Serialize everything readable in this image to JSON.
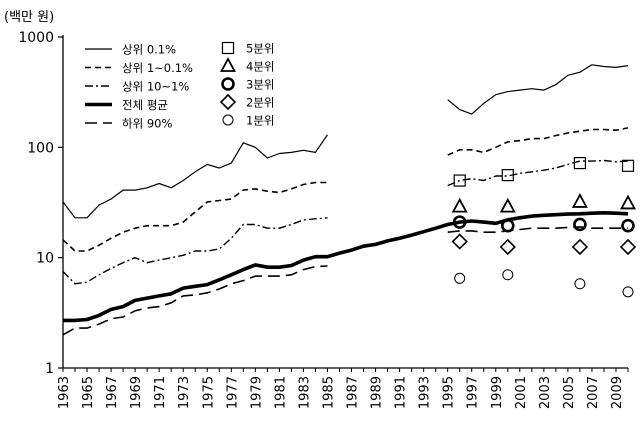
{
  "chart_data": {
    "type": "line",
    "ylabel": "(백만 원)",
    "y_scale": "log",
    "ylim": [
      1,
      1000
    ],
    "xlim": [
      1963,
      2010
    ],
    "y_ticks": [
      1,
      10,
      100,
      1000
    ],
    "y_tick_labels": [
      "1",
      "10",
      "100",
      "1000"
    ],
    "x_ticks": [
      1963,
      1965,
      1967,
      1969,
      1971,
      1973,
      1975,
      1977,
      1979,
      1981,
      1983,
      1985,
      1987,
      1989,
      1991,
      1993,
      1995,
      1997,
      1999,
      2001,
      2003,
      2005,
      2007,
      2009
    ],
    "x_tick_labels": [
      "1963",
      "1965",
      "1967",
      "1969",
      "1971",
      "1973",
      "1975",
      "1977",
      "1979",
      "1981",
      "1983",
      "1985",
      "1987",
      "1989",
      "1991",
      "1993",
      "1995",
      "1997",
      "1999",
      "2001",
      "2003",
      "2005",
      "2007",
      "2009"
    ],
    "grid": false,
    "legend_position": "top-left",
    "series": [
      {
        "name": "상위 0.1%",
        "style": "solid-thin",
        "x": [
          1963,
          1964,
          1965,
          1966,
          1967,
          1968,
          1969,
          1970,
          1971,
          1972,
          1973,
          1974,
          1975,
          1976,
          1977,
          1978,
          1979,
          1980,
          1981,
          1982,
          1983,
          1984,
          1985,
          null,
          1995,
          1996,
          1997,
          1998,
          1999,
          2000,
          2001,
          2002,
          2003,
          2004,
          2005,
          2006,
          2007,
          2008,
          2009,
          2010
        ],
        "y": [
          32,
          23,
          23,
          30,
          34,
          41,
          41,
          43,
          47,
          43,
          50,
          60,
          70,
          65,
          72,
          110,
          100,
          80,
          88,
          90,
          94,
          90,
          130,
          null,
          270,
          220,
          200,
          250,
          300,
          320,
          330,
          340,
          330,
          370,
          450,
          480,
          560,
          540,
          530,
          550
        ]
      },
      {
        "name": "상위 1~0.1%",
        "style": "dashed",
        "x": [
          1963,
          1964,
          1965,
          1966,
          1967,
          1968,
          1969,
          1970,
          1971,
          1972,
          1973,
          1974,
          1975,
          1976,
          1977,
          1978,
          1979,
          1980,
          1981,
          1982,
          1983,
          1984,
          1985,
          null,
          1995,
          1996,
          1997,
          1998,
          1999,
          2000,
          2001,
          2002,
          2003,
          2004,
          2005,
          2006,
          2007,
          2008,
          2009,
          2010
        ],
        "y": [
          14.5,
          11.5,
          11.5,
          13,
          15,
          17,
          18.5,
          19.5,
          19.5,
          19.5,
          21,
          26,
          32,
          33,
          34,
          41,
          42,
          40,
          39,
          42,
          46,
          48,
          48,
          null,
          85,
          95,
          95,
          90,
          100,
          112,
          115,
          120,
          120,
          128,
          135,
          140,
          145,
          145,
          143,
          150
        ]
      },
      {
        "name": "상위 10~1%",
        "style": "dash-dot",
        "x": [
          1963,
          1964,
          1965,
          1966,
          1967,
          1968,
          1969,
          1970,
          1971,
          1972,
          1973,
          1974,
          1975,
          1976,
          1977,
          1978,
          1979,
          1980,
          1981,
          1982,
          1983,
          1984,
          1985,
          null,
          1995,
          1996,
          1997,
          1998,
          1999,
          2000,
          2001,
          2002,
          2003,
          2004,
          2005,
          2006,
          2007,
          2008,
          2009,
          2010
        ],
        "y": [
          7.5,
          5.8,
          6,
          7,
          8,
          9,
          10,
          9,
          9.5,
          10,
          10.5,
          11.5,
          11.5,
          12,
          15,
          20,
          20,
          18.5,
          18.5,
          20,
          22,
          22.5,
          23,
          null,
          45,
          50,
          52,
          50,
          55,
          55,
          58,
          60,
          62,
          65,
          70,
          75,
          75,
          76,
          74,
          75
        ]
      },
      {
        "name": "전체 평균",
        "style": "solid-thick",
        "x": [
          1963,
          1964,
          1965,
          1966,
          1967,
          1968,
          1969,
          1970,
          1971,
          1972,
          1973,
          1974,
          1975,
          1976,
          1977,
          1978,
          1979,
          1980,
          1981,
          1982,
          1983,
          1984,
          1985,
          1986,
          1987,
          1988,
          1989,
          1990,
          1991,
          1992,
          1993,
          1994,
          1995,
          1996,
          1997,
          1998,
          1999,
          2000,
          2001,
          2002,
          2003,
          2004,
          2005,
          2006,
          2007,
          2008,
          2009,
          2010
        ],
        "y": [
          2.7,
          2.7,
          2.75,
          3,
          3.4,
          3.6,
          4.1,
          4.3,
          4.5,
          4.7,
          5.3,
          5.5,
          5.7,
          6.3,
          7,
          7.8,
          8.6,
          8.2,
          8.2,
          8.5,
          9.5,
          10.2,
          10.2,
          11,
          11.7,
          12.7,
          13.2,
          14.2,
          15,
          16,
          17.2,
          18.5,
          20,
          21,
          21.5,
          21,
          20.5,
          22,
          23,
          23.8,
          24.2,
          24.5,
          24.8,
          25,
          25.3,
          25.5,
          25.3,
          25
        ]
      },
      {
        "name": "하위 90%",
        "style": "long-dash",
        "x": [
          1963,
          1964,
          1965,
          1966,
          1967,
          1968,
          1969,
          1970,
          1971,
          1972,
          1973,
          1974,
          1975,
          1976,
          1977,
          1978,
          1979,
          1980,
          1981,
          1982,
          1983,
          1984,
          1985,
          null,
          1995,
          1996,
          1997,
          1998,
          1999,
          2000,
          2001,
          2002,
          2003,
          2004,
          2005,
          2006,
          2007,
          2008,
          2009,
          2010
        ],
        "y": [
          2,
          2.3,
          2.3,
          2.5,
          2.8,
          2.9,
          3.3,
          3.5,
          3.6,
          3.9,
          4.5,
          4.6,
          4.8,
          5.2,
          5.8,
          6.2,
          6.8,
          6.8,
          6.8,
          7,
          7.8,
          8.3,
          8.4,
          null,
          17,
          17.5,
          17.5,
          17,
          17,
          17.5,
          18,
          18.5,
          18.5,
          18.5,
          18.8,
          19,
          18.5,
          18.5,
          18.5,
          18.5
        ]
      },
      {
        "name": "5분위",
        "marker": "square",
        "x": [
          1996,
          2000,
          2006,
          2010
        ],
        "y": [
          50,
          56,
          72,
          68
        ]
      },
      {
        "name": "4분위",
        "marker": "triangle",
        "x": [
          1996,
          2000,
          2006,
          2010
        ],
        "y": [
          29,
          29,
          32,
          31
        ]
      },
      {
        "name": "3분위",
        "marker": "bold-circle",
        "x": [
          1996,
          2000,
          2006,
          2010
        ],
        "y": [
          21,
          19.5,
          20,
          19.5
        ]
      },
      {
        "name": "2분위",
        "marker": "diamond",
        "x": [
          1996,
          2000,
          2006,
          2010
        ],
        "y": [
          14,
          12.5,
          12.5,
          12.5
        ]
      },
      {
        "name": "1분위",
        "marker": "circle",
        "x": [
          1996,
          2000,
          2006,
          2010
        ],
        "y": [
          6.5,
          7,
          5.8,
          4.9
        ]
      }
    ]
  }
}
